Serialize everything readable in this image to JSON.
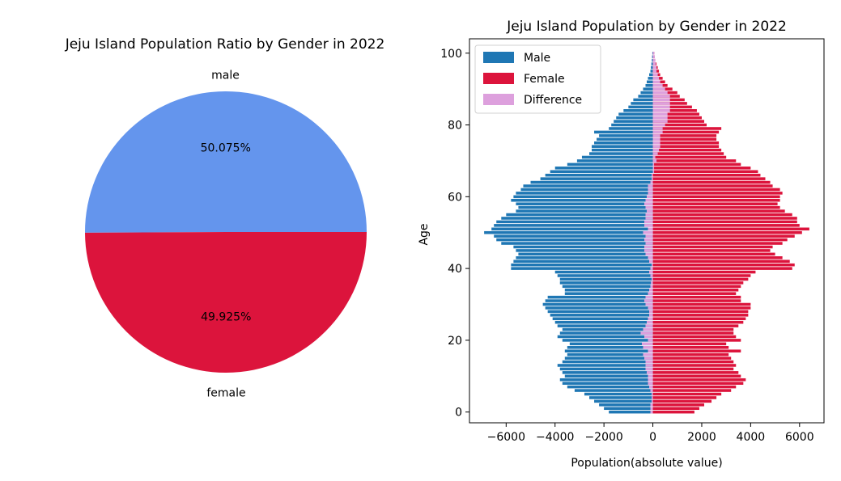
{
  "chart_data": [
    {
      "type": "pie",
      "title": "Jeju Island Population Ratio by Gender in 2022",
      "slices": [
        {
          "label": "male",
          "value": 50.075,
          "pct_label": "50.075%",
          "color": "#6495ED"
        },
        {
          "label": "female",
          "value": 49.925,
          "pct_label": "49.925%",
          "color": "#DC143C"
        }
      ]
    },
    {
      "type": "bar",
      "orientation": "horizontal",
      "title": "Jeju Island Population by Gender in 2022",
      "xlabel": "Population(absolute value)",
      "ylabel": "Age",
      "xlim": [
        -7500,
        7000
      ],
      "ylim": [
        -3,
        104
      ],
      "xticks": [
        -6000,
        -4000,
        -2000,
        0,
        2000,
        4000,
        6000
      ],
      "xtick_labels": [
        "−6000",
        "−4000",
        "−2000",
        "0",
        "2000",
        "4000",
        "6000"
      ],
      "yticks": [
        0,
        20,
        40,
        60,
        80,
        100
      ],
      "ytick_labels": [
        "0",
        "20",
        "40",
        "60",
        "80",
        "100"
      ],
      "legend_position": "top-left",
      "series": [
        {
          "name": "Male",
          "color": "#1F77B4",
          "values": [
            -1800,
            -2000,
            -2200,
            -2400,
            -2600,
            -2800,
            -3200,
            -3500,
            -3700,
            -3800,
            -3600,
            -3700,
            -3800,
            -3900,
            -3700,
            -3600,
            -3500,
            -3600,
            -3500,
            -3400,
            -3700,
            -3900,
            -3800,
            -3700,
            -3900,
            -4000,
            -4100,
            -4200,
            -4300,
            -4400,
            -4500,
            -4400,
            -4300,
            -3600,
            -3600,
            -3700,
            -3800,
            -3800,
            -3900,
            -4000,
            -5800,
            -5800,
            -5700,
            -5600,
            -5500,
            -5600,
            -5700,
            -6200,
            -6400,
            -6500,
            -6900,
            -6600,
            -6500,
            -6400,
            -6200,
            -6000,
            -5600,
            -5500,
            -5600,
            -5800,
            -5700,
            -5600,
            -5400,
            -5300,
            -5000,
            -4600,
            -4400,
            -4200,
            -4000,
            -3500,
            -3100,
            -2900,
            -2600,
            -2500,
            -2500,
            -2400,
            -2300,
            -2200,
            -2400,
            -1800,
            -1700,
            -1600,
            -1500,
            -1400,
            -1200,
            -1000,
            -900,
            -800,
            -600,
            -500,
            -400,
            -300,
            -250,
            -200,
            -150,
            -100,
            -80,
            -60,
            -40,
            -30,
            -20
          ]
        },
        {
          "name": "Female",
          "color": "#DC143C",
          "values": [
            1700,
            1900,
            2100,
            2400,
            2600,
            2800,
            3200,
            3400,
            3700,
            3800,
            3600,
            3500,
            3300,
            3400,
            3300,
            3200,
            3100,
            3600,
            3100,
            3000,
            3600,
            3400,
            3300,
            3300,
            3500,
            3700,
            3800,
            3900,
            3900,
            4000,
            4000,
            3600,
            3600,
            3400,
            3500,
            3600,
            3700,
            3900,
            4000,
            4200,
            5700,
            5800,
            5600,
            5300,
            5000,
            4800,
            4900,
            5300,
            5500,
            5800,
            6100,
            6400,
            6000,
            5900,
            5900,
            5700,
            5400,
            5200,
            5100,
            5200,
            5200,
            5300,
            5200,
            4900,
            4800,
            4600,
            4400,
            4300,
            4000,
            3600,
            3400,
            3000,
            2900,
            2800,
            2700,
            2700,
            2600,
            2600,
            2700,
            2800,
            2200,
            2100,
            2000,
            1900,
            1800,
            1600,
            1400,
            1300,
            1100,
            1000,
            800,
            600,
            500,
            400,
            300,
            250,
            200,
            150,
            100,
            80,
            60
          ]
        },
        {
          "name": "Difference",
          "color": "#DDA0DD",
          "values": [
            -100,
            -100,
            -100,
            -50,
            -50,
            -50,
            -100,
            -150,
            -200,
            -200,
            -200,
            -250,
            -300,
            -300,
            -300,
            -350,
            -400,
            -200,
            -400,
            -450,
            -200,
            -350,
            -500,
            -400,
            -300,
            -250,
            -200,
            -150,
            -150,
            -200,
            -300,
            -350,
            -300,
            -200,
            -150,
            -100,
            -80,
            -50,
            -100,
            -150,
            -100,
            -50,
            -150,
            -200,
            -300,
            -350,
            -350,
            -300,
            -350,
            -300,
            -400,
            -200,
            -350,
            -350,
            -300,
            -300,
            -250,
            -300,
            -350,
            -300,
            -250,
            -200,
            -200,
            -200,
            -100,
            -50,
            -50,
            50,
            50,
            50,
            150,
            100,
            200,
            250,
            300,
            300,
            300,
            300,
            400,
            400,
            500,
            600,
            600,
            600,
            700,
            700,
            700,
            700,
            700,
            600,
            500,
            400,
            300,
            250,
            200,
            150,
            150,
            120,
            100,
            80,
            60
          ]
        }
      ]
    }
  ]
}
